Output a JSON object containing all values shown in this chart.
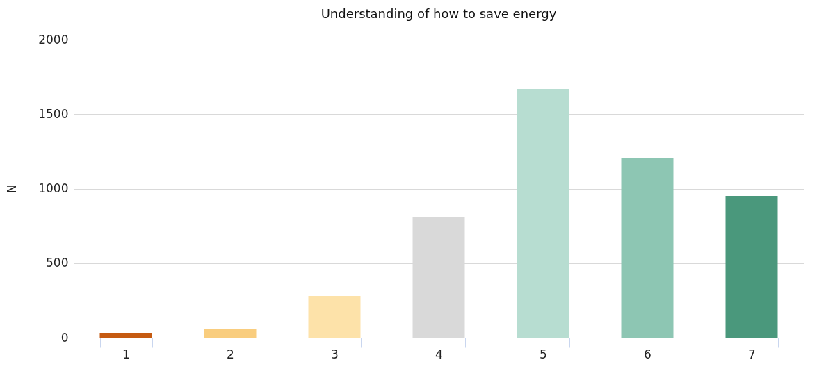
{
  "chart_data": {
    "type": "bar",
    "title": "Understanding of how to save energy",
    "ylabel": "N",
    "categories": [
      "1",
      "2",
      "3",
      "4",
      "5",
      "6",
      "7"
    ],
    "values": [
      33,
      56,
      280,
      806,
      1669,
      1203,
      951
    ],
    "colors": [
      "#c55a11",
      "#f9cd7e",
      "#fde2a9",
      "#d9d9d9",
      "#b7ddd1",
      "#8dc6b3",
      "#4a987c"
    ],
    "ylim": [
      0,
      2000
    ],
    "yticks": [
      0,
      500,
      1000,
      1500,
      2000
    ],
    "grid": "y"
  }
}
